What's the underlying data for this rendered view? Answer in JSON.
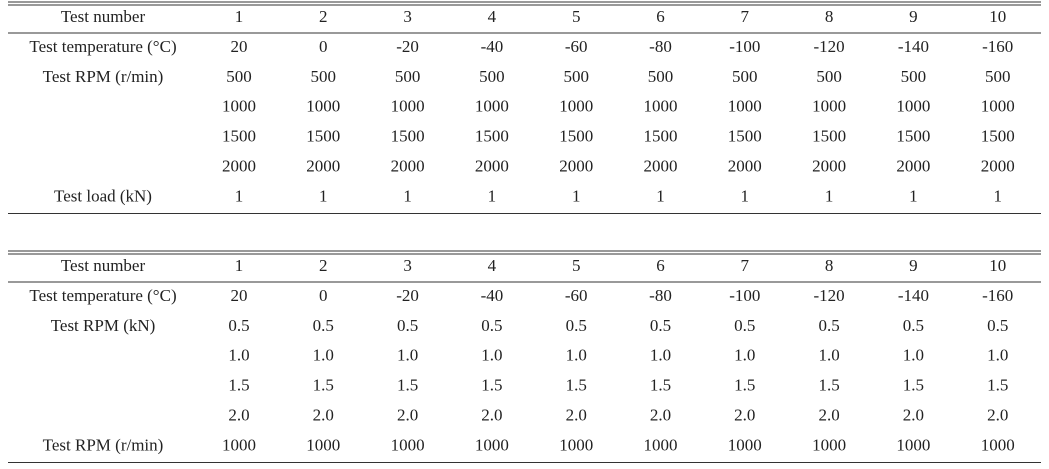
{
  "tables": [
    {
      "header": [
        "Test number",
        "1",
        "2",
        "3",
        "4",
        "5",
        "6",
        "7",
        "8",
        "9",
        "10"
      ],
      "rows": [
        [
          "Test temperature (°C)",
          "20",
          "0",
          "-20",
          "-40",
          "-60",
          "-80",
          "-100",
          "-120",
          "-140",
          "-160"
        ],
        [
          "Test RPM (r/min)",
          "500",
          "500",
          "500",
          "500",
          "500",
          "500",
          "500",
          "500",
          "500",
          "500"
        ],
        [
          null,
          "1000",
          "1000",
          "1000",
          "1000",
          "1000",
          "1000",
          "1000",
          "1000",
          "1000",
          "1000"
        ],
        [
          null,
          "1500",
          "1500",
          "1500",
          "1500",
          "1500",
          "1500",
          "1500",
          "1500",
          "1500",
          "1500"
        ],
        [
          null,
          "2000",
          "2000",
          "2000",
          "2000",
          "2000",
          "2000",
          "2000",
          "2000",
          "2000",
          "2000"
        ],
        [
          "Test load (kN)",
          "1",
          "1",
          "1",
          "1",
          "1",
          "1",
          "1",
          "1",
          "1",
          "1"
        ]
      ]
    },
    {
      "header": [
        "Test number",
        "1",
        "2",
        "3",
        "4",
        "5",
        "6",
        "7",
        "8",
        "9",
        "10"
      ],
      "rows": [
        [
          "Test temperature (°C)",
          "20",
          "0",
          "-20",
          "-40",
          "-60",
          "-80",
          "-100",
          "-120",
          "-140",
          "-160"
        ],
        [
          "Test RPM (kN)",
          "0.5",
          "0.5",
          "0.5",
          "0.5",
          "0.5",
          "0.5",
          "0.5",
          "0.5",
          "0.5",
          "0.5"
        ],
        [
          null,
          "1.0",
          "1.0",
          "1.0",
          "1.0",
          "1.0",
          "1.0",
          "1.0",
          "1.0",
          "1.0",
          "1.0"
        ],
        [
          null,
          "1.5",
          "1.5",
          "1.5",
          "1.5",
          "1.5",
          "1.5",
          "1.5",
          "1.5",
          "1.5",
          "1.5"
        ],
        [
          null,
          "2.0",
          "2.0",
          "2.0",
          "2.0",
          "2.0",
          "2.0",
          "2.0",
          "2.0",
          "2.0",
          "2.0"
        ],
        [
          "Test RPM (r/min)",
          "1000",
          "1000",
          "1000",
          "1000",
          "1000",
          "1000",
          "1000",
          "1000",
          "1000",
          "1000"
        ]
      ]
    }
  ]
}
